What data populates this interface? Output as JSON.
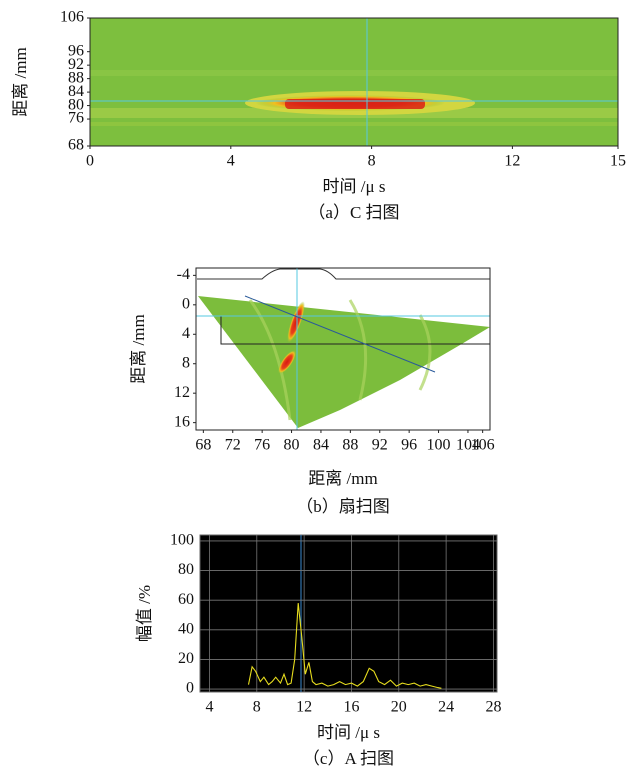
{
  "chart_data": [
    {
      "type": "heatmap",
      "title": "（a）C 扫图",
      "xlabel": "时间 /μ s",
      "ylabel": "距离 /mm",
      "xlim": [
        0,
        15
      ],
      "xticks": [
        0,
        4,
        8,
        12,
        15
      ],
      "ylim": [
        68,
        106
      ],
      "yticks": [
        68,
        76,
        80,
        84,
        88,
        92,
        96,
        106
      ]
    },
    {
      "type": "sector",
      "title": "（b）扇扫图",
      "xlabel": "距离 /mm",
      "ylabel": "距离 /mm",
      "xlim": [
        67,
        107
      ],
      "xticks": [
        68,
        72,
        76,
        80,
        84,
        88,
        92,
        96,
        100,
        104,
        106
      ],
      "ylim": [
        -5,
        17
      ],
      "yticks": [
        -4,
        0,
        4,
        8,
        12,
        16
      ],
      "y_inverted": true
    },
    {
      "type": "line",
      "title": "（c）A 扫图",
      "xlabel": "时间 /μ s",
      "ylabel": "幅值 /%",
      "xlim": [
        3.2,
        28.3
      ],
      "xticks": [
        4,
        8,
        12,
        16,
        20,
        24,
        28
      ],
      "ylim": [
        -2,
        104
      ],
      "yticks": [
        0,
        20,
        40,
        60,
        80,
        100
      ],
      "grid": true,
      "color": "#e6dc1e",
      "x": [
        7.3,
        7.6,
        7.9,
        8.3,
        8.6,
        9.0,
        9.3,
        9.6,
        10.0,
        10.3,
        10.6,
        10.9,
        11.2,
        11.5,
        11.8,
        12.1,
        12.4,
        12.7,
        13.0,
        13.5,
        14.0,
        14.5,
        15.0,
        15.5,
        16.0,
        16.5,
        17.0,
        17.5,
        17.9,
        18.3,
        18.8,
        19.3,
        19.8,
        20.3,
        20.8,
        21.3,
        21.8,
        22.3,
        22.8,
        23.3,
        23.6
      ],
      "values": [
        3,
        15,
        12,
        5,
        8,
        3,
        5,
        8,
        4,
        10,
        3,
        4,
        20,
        58,
        35,
        10,
        18,
        5,
        3,
        4,
        2,
        3,
        5,
        3,
        4,
        2,
        5,
        14,
        12,
        5,
        3,
        6,
        2,
        4,
        3,
        4,
        2,
        3,
        2,
        1,
        0.5
      ]
    }
  ]
}
